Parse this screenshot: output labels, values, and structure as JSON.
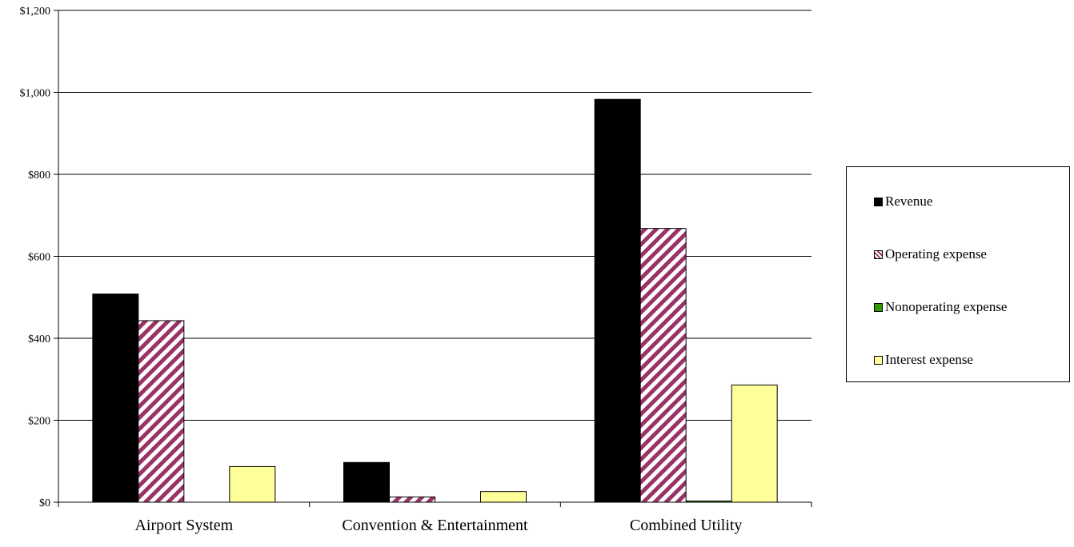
{
  "chart_data": {
    "type": "bar",
    "title": "",
    "xlabel": "",
    "ylabel": "",
    "categories": [
      "Airport System",
      "Convention & Entertainment",
      "Combined Utility"
    ],
    "series": [
      {
        "name": "Revenue",
        "values": [
          508,
          97,
          983
        ],
        "color": "#000000",
        "pattern": "solid"
      },
      {
        "name": "Operating expense",
        "values": [
          443,
          13,
          668
        ],
        "color": "#993366",
        "pattern": "diagonal-stripes"
      },
      {
        "name": "Nonoperating expense",
        "values": [
          0,
          0,
          3
        ],
        "color": "#339900",
        "pattern": "solid"
      },
      {
        "name": "Interest expense",
        "values": [
          87,
          26,
          286
        ],
        "color": "#FFFF99",
        "pattern": "solid"
      }
    ],
    "ylim": [
      0,
      1200
    ],
    "yticks": [
      0,
      200,
      400,
      600,
      800,
      1000,
      1200
    ],
    "ytick_labels": [
      "$0",
      "$200",
      "$400",
      "$600",
      "$800",
      "$1,000",
      "$1,200"
    ],
    "grid": true,
    "legend_position": "right"
  }
}
